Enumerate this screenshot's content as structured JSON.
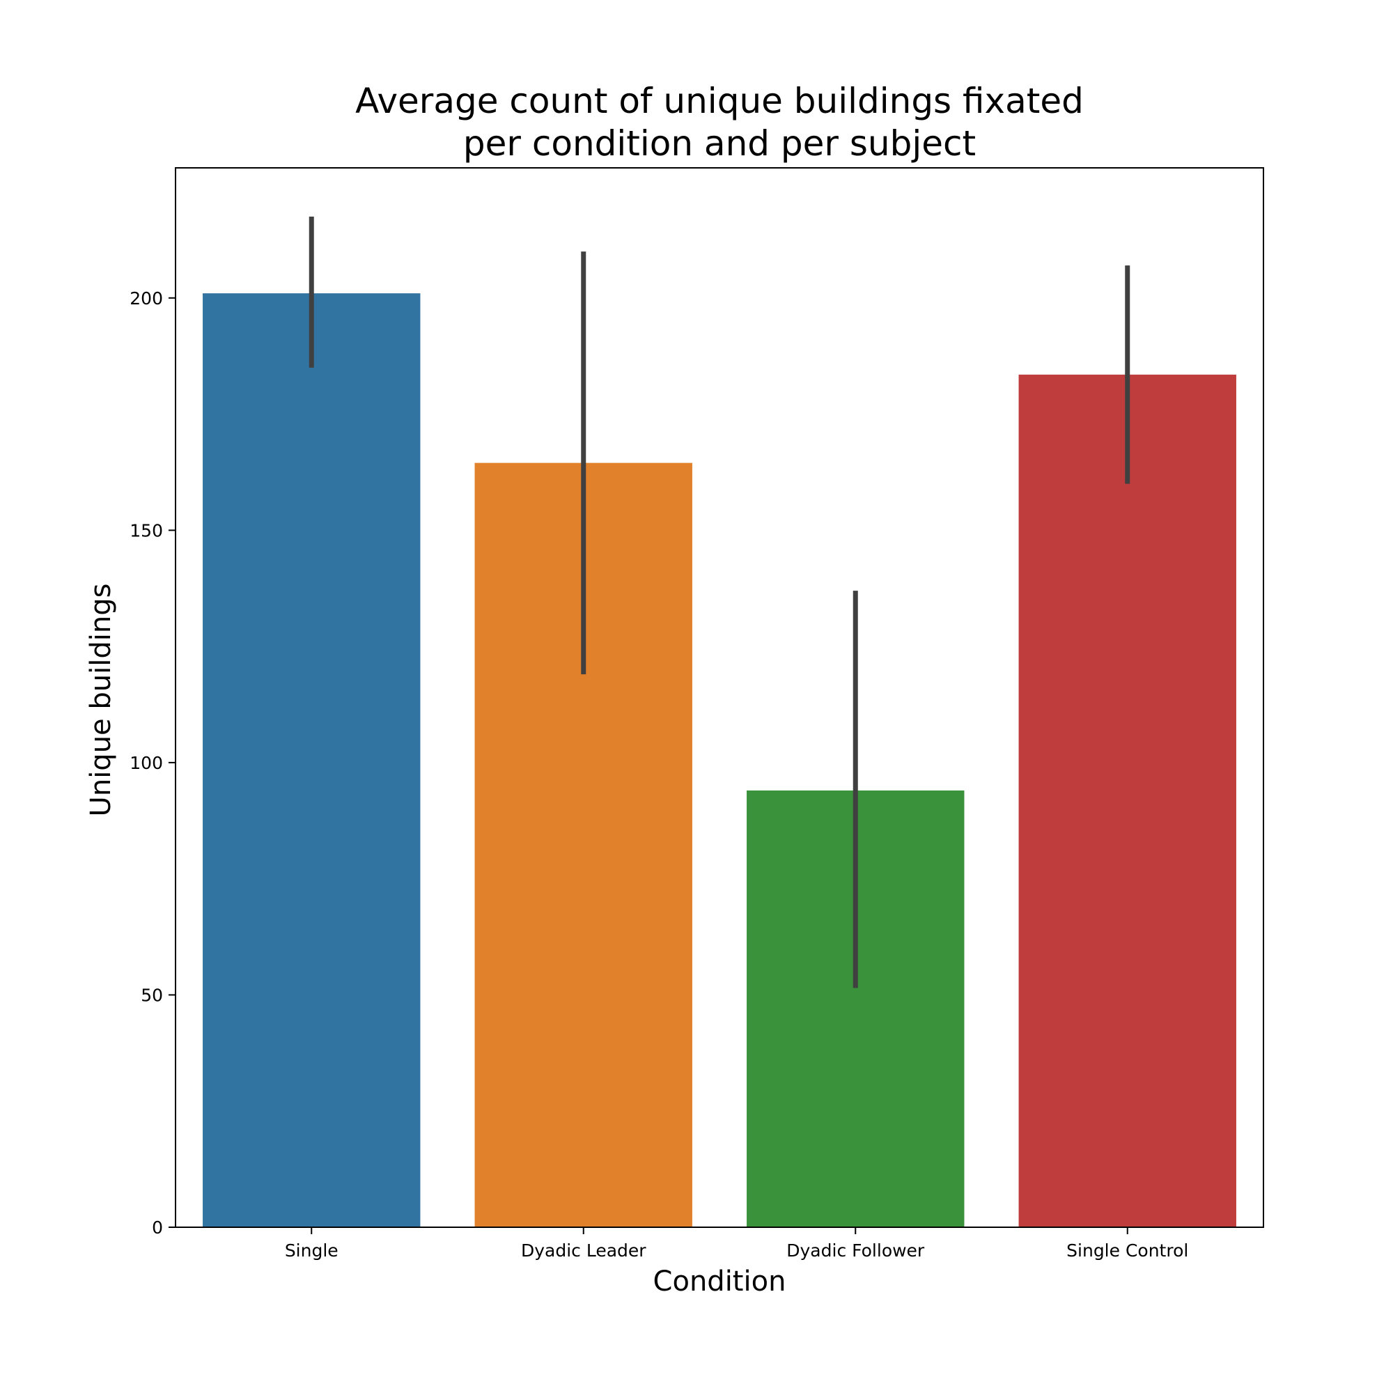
{
  "chart_data": {
    "type": "bar",
    "title_lines": [
      "Average count of unique buildings fixated",
      "per condition and per subject"
    ],
    "xlabel": "Condition",
    "ylabel": "Unique buildings",
    "categories": [
      "Single",
      "Dyadic Leader",
      "Dyadic Follower",
      "Single Control"
    ],
    "values": [
      201,
      164.5,
      94,
      183.5
    ],
    "error_low": [
      185,
      119,
      51.5,
      160
    ],
    "error_high": [
      217.5,
      210,
      137,
      207
    ],
    "colors": [
      "#3274a1",
      "#e1812c",
      "#3a923a",
      "#c03d3e"
    ],
    "error_color": "#404040",
    "ylim": [
      0,
      228
    ],
    "yticks": [
      0,
      50,
      100,
      150,
      200
    ],
    "grid": false
  }
}
